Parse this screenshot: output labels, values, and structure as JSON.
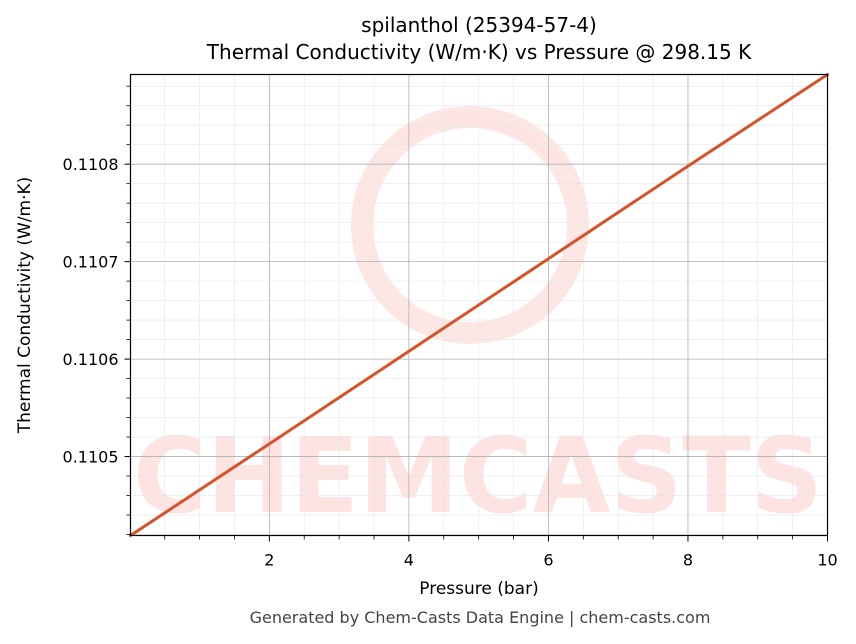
{
  "chart_data": {
    "type": "line",
    "title": "spilanthol (25394-57-4)",
    "subtitle": "Thermal Conductivity (W/m·K) vs Pressure @ 298.15 K",
    "xlabel": "Pressure (bar)",
    "ylabel": "Thermal Conductivity (W/m·K)",
    "xlim": [
      0.01,
      10
    ],
    "ylim": [
      0.110419,
      0.110892
    ],
    "x_ticks": [
      2,
      4,
      6,
      8,
      10
    ],
    "x_tick_labels": [
      "2",
      "4",
      "6",
      "8",
      "10"
    ],
    "y_ticks": [
      0.1105,
      0.1106,
      0.1107,
      0.1108
    ],
    "y_tick_labels": [
      "0.1105",
      "0.1106",
      "0.1107",
      "0.1108"
    ],
    "grid": true,
    "series": [
      {
        "color": "#d6532a",
        "x": [
          0.01,
          2,
          4,
          6,
          8,
          10
        ],
        "y": [
          0.110419,
          0.110513,
          0.110608,
          0.110703,
          0.110798,
          0.110892
        ]
      }
    ]
  },
  "watermark": {
    "text": "CHEMCASTS",
    "color": "#fde3e1"
  },
  "footer": "Generated by Chem-Casts Data Engine | chem-casts.com"
}
